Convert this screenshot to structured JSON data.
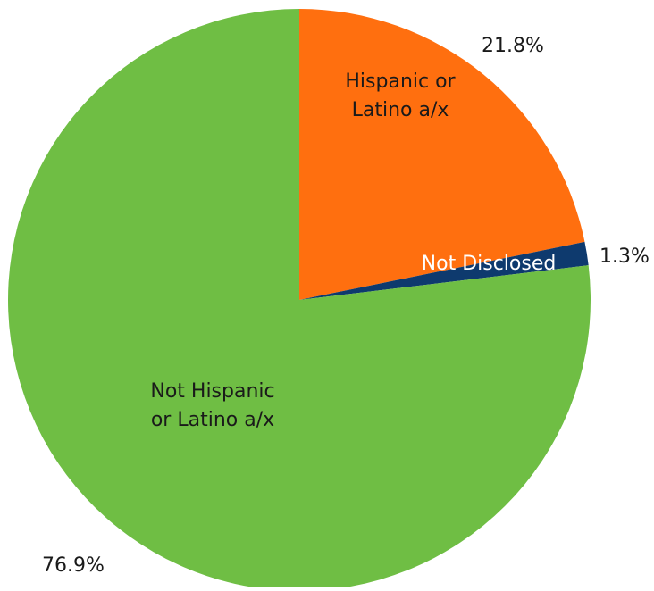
{
  "chart_data": {
    "type": "pie",
    "start_angle_deg": 0,
    "direction": "clockwise",
    "slices": [
      {
        "name": "Hispanic or Latino a/x",
        "inner_label": [
          "Hispanic or",
          "Latino a/x"
        ],
        "value": 21.8,
        "value_label": "21.8%",
        "color": "#FF6F0F",
        "label_color": "#1a1a1a"
      },
      {
        "name": "Not Disclosed",
        "inner_label": [
          "Not Disclosed"
        ],
        "value": 1.3,
        "value_label": "1.3%",
        "color": "#0E3A6E",
        "label_color": "#ffffff"
      },
      {
        "name": "Not Hispanic or Latino a/x",
        "inner_label": [
          "Not Hispanic",
          "or Latino a/x"
        ],
        "value": 76.9,
        "value_label": "76.9%",
        "color": "#6FBE44",
        "label_color": "#1a1a1a"
      }
    ]
  }
}
